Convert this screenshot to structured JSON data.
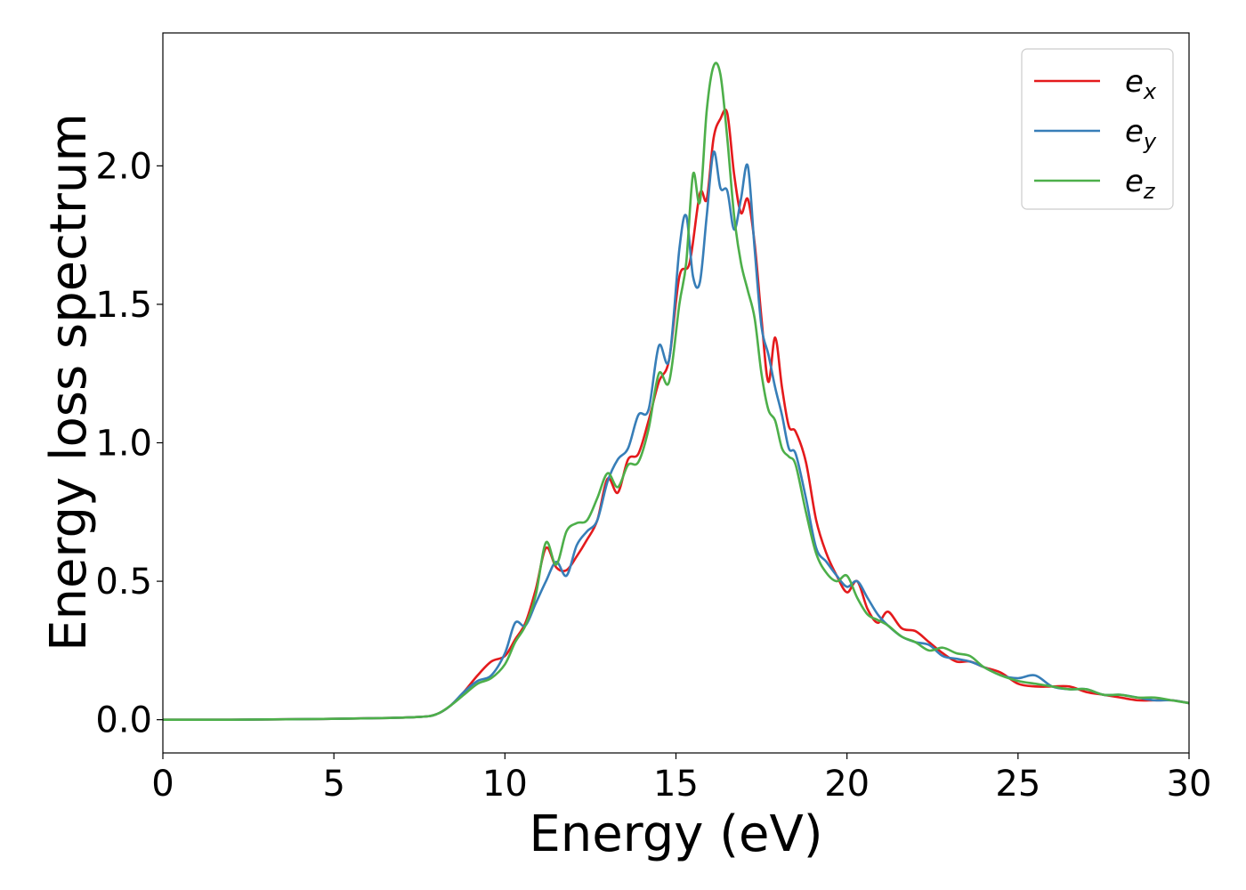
{
  "chart_data": {
    "type": "line",
    "xlabel": "Energy (eV)",
    "ylabel": "Energy loss spectrum",
    "xlim": [
      0,
      30
    ],
    "ylim": [
      -0.12,
      2.48
    ],
    "xticks": [
      0,
      5,
      10,
      15,
      20,
      25,
      30
    ],
    "yticks": [
      0.0,
      0.5,
      1.0,
      1.5,
      2.0
    ],
    "xtick_labels": [
      "0",
      "5",
      "10",
      "15",
      "20",
      "25",
      "30"
    ],
    "ytick_labels": [
      "0.0",
      "0.5",
      "1.0",
      "1.5",
      "2.0"
    ],
    "grid": false,
    "legend_position": "top-right",
    "series": [
      {
        "name": "e_x",
        "legend_base": "e",
        "legend_sub": "x",
        "color": "#e41a1c",
        "x": [
          0,
          2,
          4,
          6,
          7.5,
          8.0,
          8.4,
          8.8,
          9.2,
          9.6,
          10.0,
          10.3,
          10.6,
          10.9,
          11.2,
          11.5,
          11.8,
          12.1,
          12.4,
          12.7,
          13.0,
          13.3,
          13.6,
          13.9,
          14.2,
          14.5,
          14.8,
          15.1,
          15.4,
          15.7,
          15.9,
          16.1,
          16.3,
          16.5,
          16.7,
          16.9,
          17.1,
          17.3,
          17.5,
          17.7,
          17.9,
          18.1,
          18.3,
          18.5,
          18.8,
          19.1,
          19.4,
          19.7,
          20.0,
          20.3,
          20.6,
          20.9,
          21.2,
          21.6,
          22.0,
          22.4,
          22.8,
          23.2,
          23.6,
          24.0,
          24.5,
          25.0,
          25.5,
          26.0,
          26.5,
          27.0,
          27.5,
          28.0,
          28.5,
          29.0,
          29.5,
          30.0
        ],
        "y": [
          0.0,
          0.0,
          0.002,
          0.005,
          0.01,
          0.02,
          0.05,
          0.1,
          0.16,
          0.21,
          0.23,
          0.29,
          0.35,
          0.47,
          0.62,
          0.55,
          0.54,
          0.59,
          0.65,
          0.72,
          0.87,
          0.82,
          0.94,
          0.96,
          1.08,
          1.22,
          1.3,
          1.6,
          1.65,
          1.9,
          1.88,
          2.1,
          2.17,
          2.19,
          1.97,
          1.83,
          1.88,
          1.72,
          1.45,
          1.22,
          1.38,
          1.2,
          1.06,
          1.04,
          0.93,
          0.72,
          0.6,
          0.52,
          0.46,
          0.5,
          0.4,
          0.35,
          0.39,
          0.33,
          0.32,
          0.28,
          0.24,
          0.21,
          0.21,
          0.19,
          0.17,
          0.13,
          0.12,
          0.12,
          0.12,
          0.1,
          0.09,
          0.08,
          0.07,
          0.07,
          0.07,
          0.06
        ]
      },
      {
        "name": "e_y",
        "legend_base": "e",
        "legend_sub": "y",
        "color": "#377eb8",
        "x": [
          0,
          2,
          4,
          6,
          7.5,
          8.0,
          8.4,
          8.8,
          9.2,
          9.6,
          10.0,
          10.3,
          10.6,
          10.9,
          11.2,
          11.5,
          11.8,
          12.1,
          12.4,
          12.7,
          13.0,
          13.3,
          13.6,
          13.9,
          14.2,
          14.5,
          14.8,
          15.1,
          15.3,
          15.5,
          15.7,
          15.9,
          16.1,
          16.3,
          16.5,
          16.7,
          16.9,
          17.1,
          17.3,
          17.5,
          17.7,
          17.9,
          18.1,
          18.3,
          18.5,
          18.8,
          19.1,
          19.4,
          19.7,
          20.0,
          20.3,
          20.6,
          20.9,
          21.2,
          21.6,
          22.0,
          22.4,
          22.8,
          23.2,
          23.6,
          24.0,
          24.5,
          25.0,
          25.5,
          26.0,
          26.5,
          27.0,
          27.5,
          28.0,
          28.5,
          29.0,
          29.5,
          30.0
        ],
        "y": [
          0.0,
          0.0,
          0.002,
          0.005,
          0.01,
          0.02,
          0.05,
          0.1,
          0.14,
          0.16,
          0.24,
          0.35,
          0.34,
          0.42,
          0.5,
          0.57,
          0.52,
          0.63,
          0.68,
          0.72,
          0.86,
          0.94,
          0.98,
          1.1,
          1.12,
          1.35,
          1.3,
          1.7,
          1.82,
          1.6,
          1.58,
          1.82,
          2.05,
          1.92,
          1.91,
          1.77,
          1.88,
          2.0,
          1.7,
          1.42,
          1.32,
          1.2,
          1.1,
          0.98,
          0.96,
          0.8,
          0.62,
          0.57,
          0.52,
          0.48,
          0.5,
          0.44,
          0.38,
          0.34,
          0.3,
          0.28,
          0.27,
          0.23,
          0.22,
          0.21,
          0.19,
          0.16,
          0.15,
          0.16,
          0.12,
          0.11,
          0.11,
          0.09,
          0.09,
          0.08,
          0.07,
          0.07,
          0.06
        ]
      },
      {
        "name": "e_z",
        "legend_base": "e",
        "legend_sub": "z",
        "color": "#4daf4a",
        "x": [
          0,
          2,
          4,
          6,
          7.5,
          8.0,
          8.4,
          8.8,
          9.2,
          9.6,
          10.0,
          10.3,
          10.6,
          10.9,
          11.2,
          11.5,
          11.8,
          12.1,
          12.4,
          12.7,
          13.0,
          13.3,
          13.6,
          13.9,
          14.2,
          14.5,
          14.8,
          15.1,
          15.3,
          15.5,
          15.7,
          15.9,
          16.1,
          16.3,
          16.5,
          16.7,
          16.9,
          17.1,
          17.3,
          17.5,
          17.7,
          17.9,
          18.1,
          18.3,
          18.5,
          18.8,
          19.1,
          19.4,
          19.7,
          20.0,
          20.3,
          20.6,
          20.9,
          21.2,
          21.6,
          22.0,
          22.4,
          22.8,
          23.2,
          23.6,
          24.0,
          24.5,
          25.0,
          25.5,
          26.0,
          26.5,
          27.0,
          27.5,
          28.0,
          28.5,
          29.0,
          29.5,
          30.0
        ],
        "y": [
          0.0,
          0.0,
          0.002,
          0.005,
          0.01,
          0.02,
          0.05,
          0.09,
          0.13,
          0.15,
          0.2,
          0.28,
          0.34,
          0.45,
          0.64,
          0.56,
          0.68,
          0.71,
          0.72,
          0.8,
          0.89,
          0.84,
          0.92,
          0.93,
          1.05,
          1.25,
          1.22,
          1.5,
          1.65,
          1.97,
          1.87,
          2.2,
          2.36,
          2.33,
          2.1,
          1.82,
          1.65,
          1.55,
          1.45,
          1.25,
          1.12,
          1.08,
          0.98,
          0.95,
          0.92,
          0.75,
          0.6,
          0.53,
          0.5,
          0.52,
          0.44,
          0.38,
          0.36,
          0.34,
          0.3,
          0.28,
          0.25,
          0.26,
          0.24,
          0.23,
          0.19,
          0.16,
          0.14,
          0.13,
          0.12,
          0.11,
          0.11,
          0.09,
          0.09,
          0.08,
          0.08,
          0.07,
          0.06
        ]
      }
    ]
  }
}
